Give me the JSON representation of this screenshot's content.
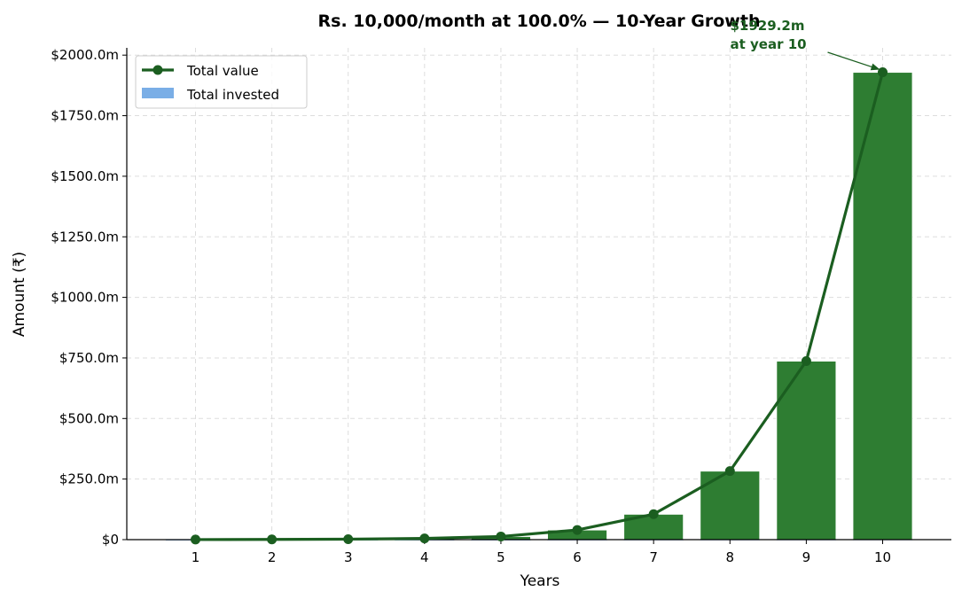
{
  "chart_data": {
    "type": "bar",
    "title": "Rs. 10,000/month at 100.0% — 10-Year Growth",
    "xlabel": "Years",
    "ylabel": "Amount (₹)",
    "categories": [
      "1",
      "2",
      "3",
      "4",
      "5",
      "6",
      "7",
      "8",
      "9",
      "10"
    ],
    "x": [
      1,
      2,
      3,
      4,
      5,
      6,
      7,
      8,
      9,
      10
    ],
    "xlim": [
      0.1,
      10.9
    ],
    "ylim": [
      0,
      2030
    ],
    "yticks": [
      0,
      250,
      500,
      750,
      1000,
      1250,
      1500,
      1750,
      2000
    ],
    "ytick_labels": [
      "$0",
      "$250.0m",
      "$500.0m",
      "$750.0m",
      "$1000.0m",
      "$1250.0m",
      "$1500.0m",
      "$1750.0m",
      "$2000.0m"
    ],
    "series": [
      {
        "name": "Total value",
        "kind": "line",
        "color": "#1b5e20",
        "values": [
          0.3,
          0.9,
          2.0,
          5.0,
          13.0,
          40.0,
          105.0,
          283.0,
          737.0,
          1929.2
        ]
      },
      {
        "name": "Total invested",
        "kind": "bar",
        "color": "#7aaee6",
        "values": [
          0.12,
          0.24,
          0.36,
          0.48,
          0.6,
          0.72,
          0.84,
          0.96,
          1.08,
          1.2
        ]
      },
      {
        "name": "",
        "kind": "bar",
        "color": "#2e7d32",
        "values": [
          0.3,
          0.9,
          2.0,
          5.0,
          13.0,
          40.0,
          105.0,
          283.0,
          737.0,
          1929.2
        ]
      }
    ],
    "grid": true,
    "legend": "top-left",
    "annotation": {
      "lines": [
        "$1929.2m",
        "at year 10"
      ],
      "x": 10,
      "y": 1929.2,
      "color": "#1b5e20"
    }
  }
}
